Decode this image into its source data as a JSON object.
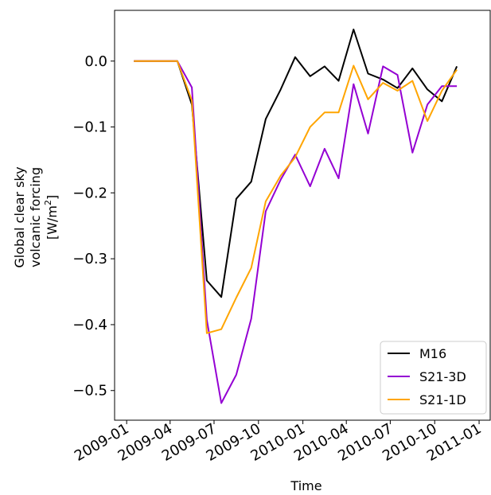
{
  "chart_data": {
    "type": "line",
    "xlabel": "Time",
    "ylabel_lines": [
      "Global clear sky",
      "volcanic forcing"
    ],
    "ylabel_unit": {
      "open": "[W/m",
      "sup": "2",
      "close": "]"
    },
    "ylim": [
      -0.545,
      0.077
    ],
    "xlim": [
      "2008-12-07",
      "2011-01-24"
    ],
    "y_ticks": [
      0.0,
      -0.1,
      -0.2,
      -0.3,
      -0.4,
      -0.5
    ],
    "y_tick_labels": [
      "0.0",
      "−0.1",
      "−0.2",
      "−0.3",
      "−0.4",
      "−0.5"
    ],
    "x_ticks": [
      "2009-01-01",
      "2009-04-01",
      "2009-07-01",
      "2009-10-01",
      "2010-01-01",
      "2010-04-01",
      "2010-07-01",
      "2010-10-01",
      "2011-01-01"
    ],
    "x_tick_labels": [
      "2009-01",
      "2009-04",
      "2009-07",
      "2009-10",
      "2010-01",
      "2010-04",
      "2010-07",
      "2010-10",
      "2011-01"
    ],
    "x": [
      "2009-01-16",
      "2009-02-15",
      "2009-03-16",
      "2009-04-16",
      "2009-05-16",
      "2009-06-16",
      "2009-07-16",
      "2009-08-16",
      "2009-09-16",
      "2009-10-16",
      "2009-11-16",
      "2009-12-16",
      "2010-01-16",
      "2010-02-15",
      "2010-03-16",
      "2010-04-16",
      "2010-05-16",
      "2010-06-16",
      "2010-07-16",
      "2010-08-16",
      "2010-09-16",
      "2010-10-16",
      "2010-11-16",
      "2010-12-16"
    ],
    "series": [
      {
        "name": "M16",
        "color": "#000000",
        "values": [
          0.0,
          0.0,
          0.0,
          0.0,
          -0.066,
          -0.333,
          -0.358,
          -0.209,
          -0.183,
          -0.088,
          -0.043,
          0.006,
          -0.023,
          -0.008,
          -0.03,
          0.048,
          -0.019,
          -0.028,
          -0.041,
          -0.011,
          -0.043,
          -0.061,
          -0.008,
          null
        ]
      },
      {
        "name": "S21-3D",
        "color": "#9400d3",
        "values": [
          0.0,
          0.0,
          0.0,
          0.0,
          -0.04,
          -0.393,
          -0.519,
          -0.476,
          -0.391,
          -0.228,
          -0.18,
          -0.142,
          -0.19,
          -0.133,
          -0.178,
          -0.035,
          -0.11,
          -0.008,
          -0.021,
          -0.139,
          -0.066,
          -0.038,
          -0.038,
          null
        ]
      },
      {
        "name": "S21-1D",
        "color": "#ffa500",
        "values": [
          0.0,
          0.0,
          0.0,
          0.0,
          -0.06,
          -0.413,
          -0.407,
          -0.359,
          -0.314,
          -0.213,
          -0.174,
          -0.146,
          -0.1,
          -0.078,
          -0.078,
          -0.007,
          -0.058,
          -0.033,
          -0.045,
          -0.03,
          -0.091,
          -0.045,
          -0.013,
          null
        ]
      }
    ],
    "legend": {
      "position": "lower right",
      "entries": [
        "M16",
        "S21-3D",
        "S21-1D"
      ]
    },
    "grid": false
  }
}
